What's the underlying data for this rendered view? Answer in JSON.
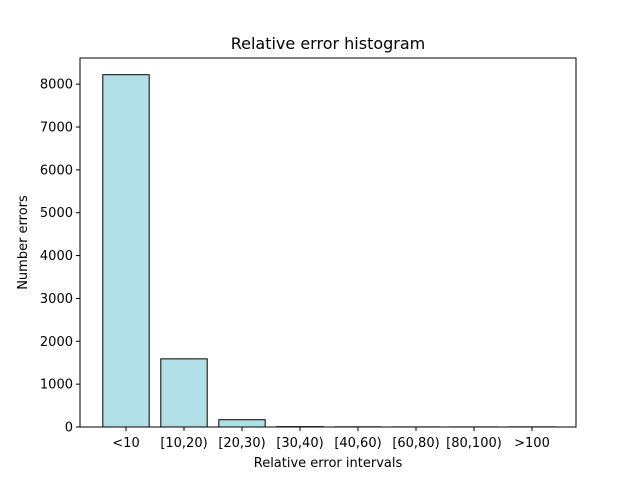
{
  "chart_data": {
    "type": "bar",
    "title": "Relative error histogram",
    "xlabel": "Relative error intervals",
    "ylabel": "Number errors",
    "categories": [
      "<10",
      "[10,20)",
      "[20,30)",
      "[30,40)",
      "[40,60)",
      "[60,80)",
      "[80,100)",
      ">100"
    ],
    "values": [
      8220,
      1590,
      170,
      8,
      4,
      2,
      2,
      3
    ],
    "ylim": [
      0,
      8610
    ],
    "yticks": [
      0,
      1000,
      2000,
      3000,
      4000,
      5000,
      6000,
      7000,
      8000
    ],
    "grid": false,
    "bar_color": "#b0e0e6",
    "edge_color": "#000000"
  }
}
